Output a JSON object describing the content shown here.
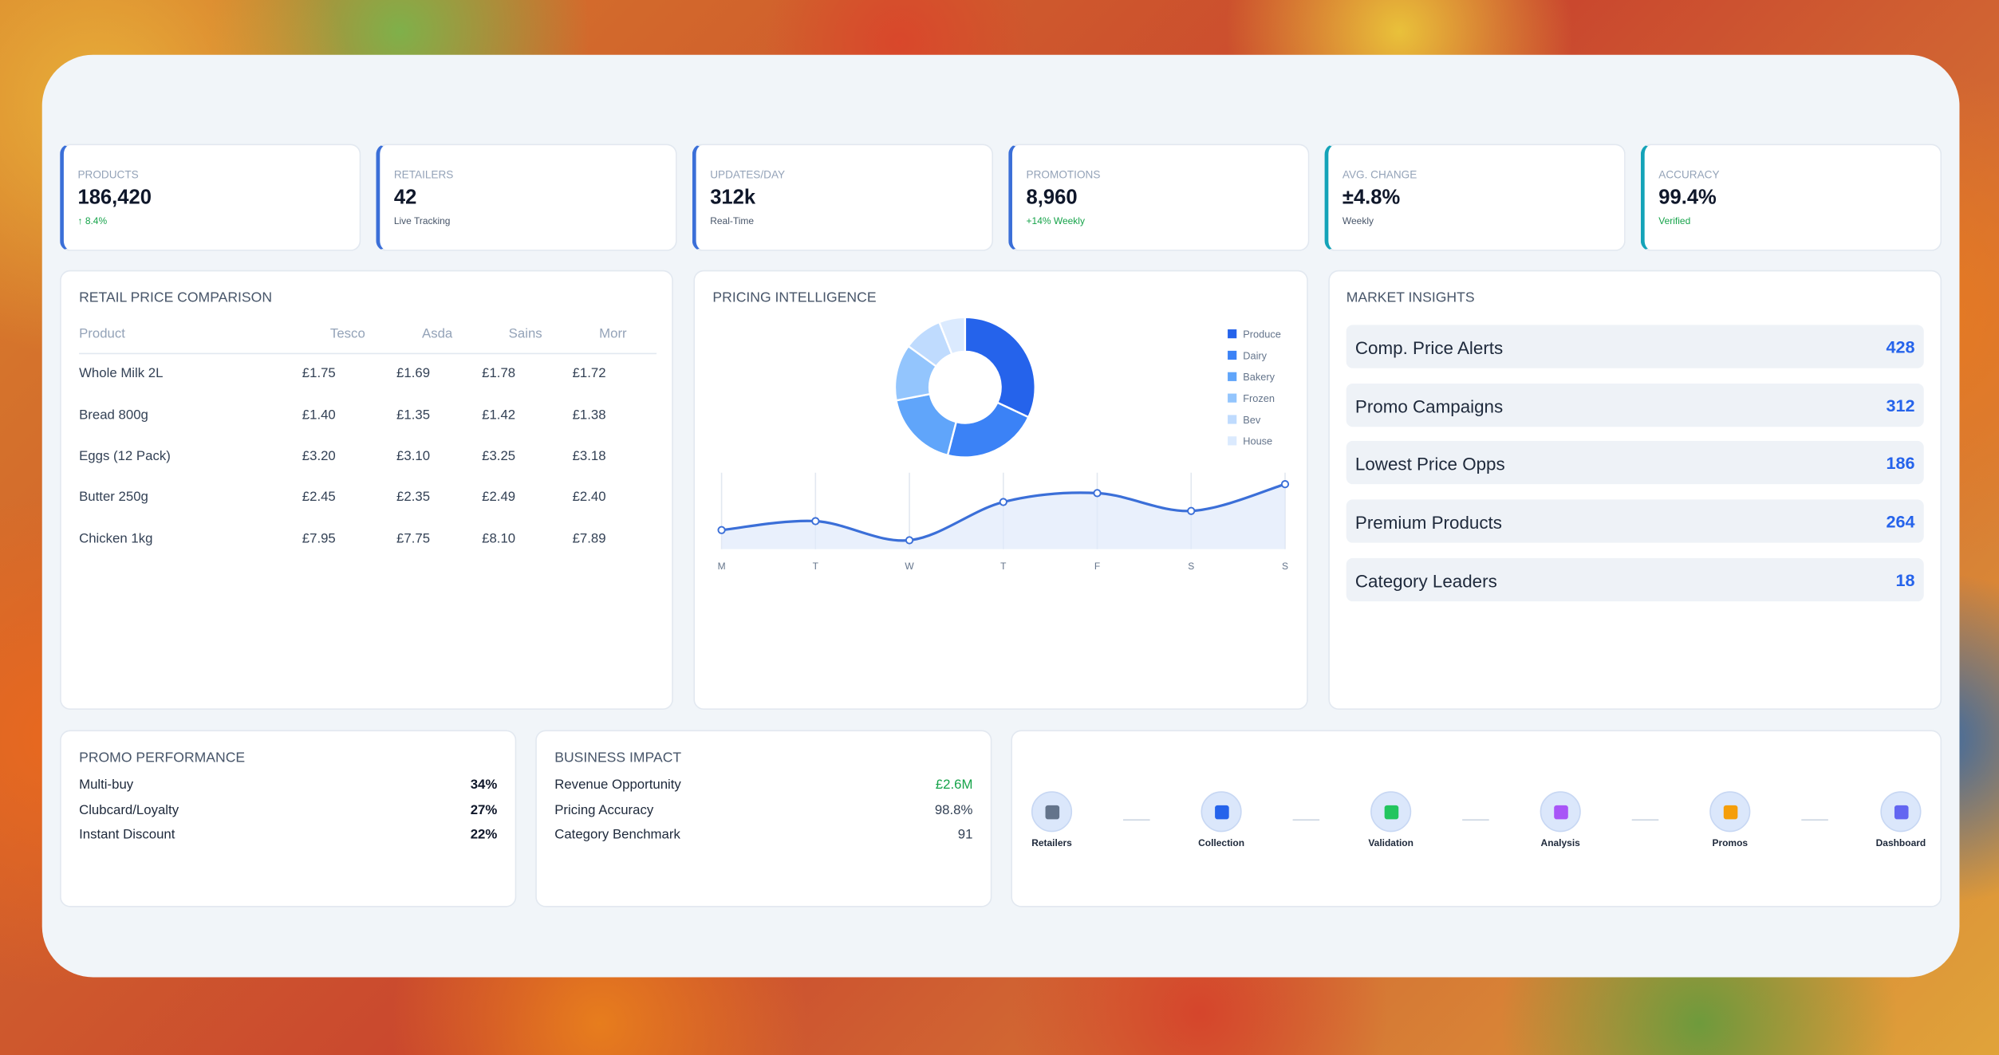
{
  "kpis": [
    {
      "label": "PRODUCTS",
      "value": "186,420",
      "note": "↑ 8.4%"
    },
    {
      "label": "RETAILERS",
      "value": "42",
      "note": "Live Tracking"
    },
    {
      "label": "UPDATES/DAY",
      "value": "312k",
      "note": "Real-Time"
    },
    {
      "label": "PROMOTIONS",
      "value": "8,960",
      "note": "+14% Weekly"
    },
    {
      "label": "AVG. CHANGE",
      "value": "±4.8%",
      "note": "Weekly"
    },
    {
      "label": "ACCURACY",
      "value": "99.4%",
      "note": "Verified"
    }
  ],
  "price_comparison": {
    "title": "RETAIL PRICE COMPARISON",
    "columns": [
      "Product",
      "Tesco",
      "Asda",
      "Sains",
      "Morr"
    ],
    "rows": [
      [
        "Whole Milk 2L",
        "£1.75",
        "£1.69",
        "£1.78",
        "£1.72"
      ],
      [
        "Bread 800g",
        "£1.40",
        "£1.35",
        "£1.42",
        "£1.38"
      ],
      [
        "Eggs (12 Pack)",
        "£3.20",
        "£3.10",
        "£3.25",
        "£3.18"
      ],
      [
        "Butter 250g",
        "£2.45",
        "£2.35",
        "£2.49",
        "£2.40"
      ],
      [
        "Chicken 1kg",
        "£7.95",
        "£7.75",
        "£8.10",
        "£7.89"
      ]
    ]
  },
  "pricing_intelligence": {
    "title": "PRICING INTELLIGENCE",
    "donut": {
      "type": "pie",
      "categories": [
        "Produce",
        "Dairy",
        "Bakery",
        "Frozen",
        "Bev",
        "House"
      ],
      "values": [
        32,
        22,
        18,
        13,
        9,
        6
      ],
      "colors": [
        "#2563eb",
        "#3b82f6",
        "#60a5fa",
        "#93c5fd",
        "#bfdbfe",
        "#dbeafe"
      ]
    },
    "line": {
      "type": "line",
      "categories": [
        "M",
        "T",
        "W",
        "T",
        "F",
        "S",
        "S"
      ],
      "values": [
        15,
        22,
        7,
        37,
        44,
        30,
        51
      ],
      "color": "#3b6fd8"
    }
  },
  "market_insights": {
    "title": "MARKET INSIGHTS",
    "items": [
      {
        "label": "Comp. Price Alerts",
        "value": 428
      },
      {
        "label": "Promo Campaigns",
        "value": 312
      },
      {
        "label": "Lowest Price Opps",
        "value": 186
      },
      {
        "label": "Premium Products",
        "value": 264
      },
      {
        "label": "Category Leaders",
        "value": 18
      }
    ]
  },
  "promo_performance": {
    "title": "PROMO PERFORMANCE",
    "items": [
      {
        "label": "Multi-buy",
        "value": "34%"
      },
      {
        "label": "Clubcard/Loyalty",
        "value": "27%"
      },
      {
        "label": "Instant Discount",
        "value": "22%"
      }
    ]
  },
  "business_impact": {
    "title": "BUSINESS IMPACT",
    "items": [
      {
        "label": "Revenue Opportunity",
        "value": "£2.6M"
      },
      {
        "label": "Pricing Accuracy",
        "value": "98.8%"
      },
      {
        "label": "Category Benchmark",
        "value": 91
      }
    ]
  },
  "pipeline": {
    "steps": [
      "Retailers",
      "Collection",
      "Validation",
      "Analysis",
      "Promos",
      "Dashboard"
    ]
  }
}
